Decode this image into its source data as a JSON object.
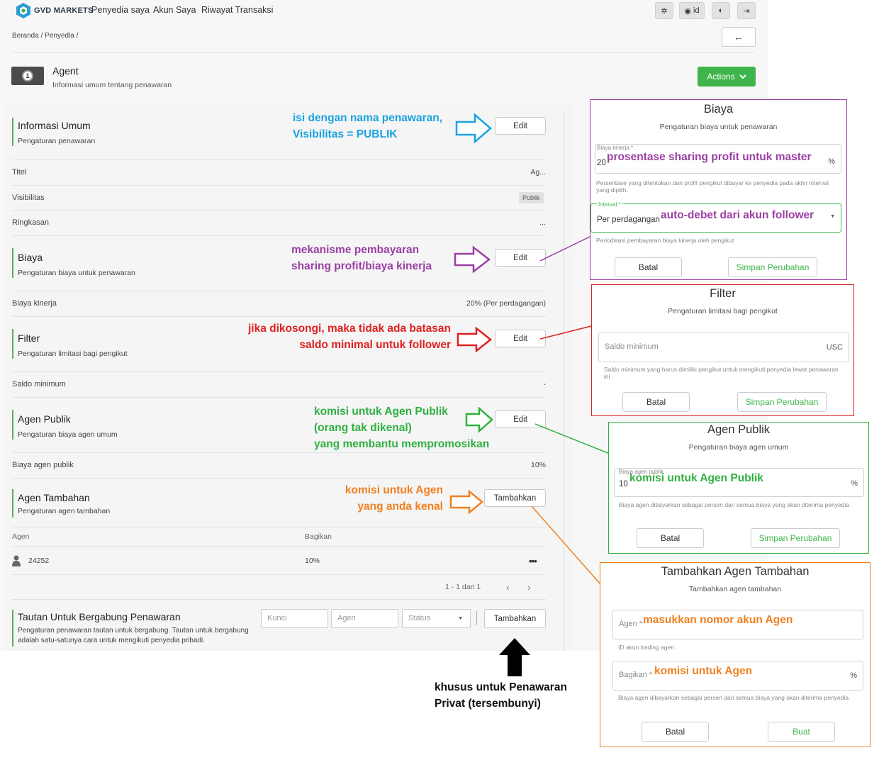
{
  "app": {
    "brand": "GVD MARKETS",
    "nav": [
      "Penyedia saya",
      "Akun Saya",
      "Riwayat Transaksi"
    ],
    "lang_label": "id"
  },
  "breadcrumb": {
    "home": "Beranda",
    "providers": "Penyedia",
    "sep": "/"
  },
  "offer": {
    "title": "Agent",
    "subtitle": "Informasi umum tentang penawaran",
    "actions_label": "Actions",
    "icon_number": "1"
  },
  "sections": {
    "general": {
      "title": "Informasi Umum",
      "subtitle": "Pengaturan penawaran",
      "edit": "Edit"
    },
    "fees": {
      "title": "Biaya",
      "subtitle": "Pengaturan biaya untuk penawaran",
      "edit": "Edit"
    },
    "filter": {
      "title": "Filter",
      "subtitle": "Pengaturan limitasi bagi pengikut",
      "edit": "Edit"
    },
    "public_agent": {
      "title": "Agen Publik",
      "subtitle": "Pengaturan biaya agen umum",
      "edit": "Edit"
    },
    "extra_agent": {
      "title": "Agen Tambahan",
      "subtitle": "Pengaturan agen tambahan",
      "add": "Tambahkan"
    },
    "join_links": {
      "title": "Tautan Untuk Bergabung Penawaran",
      "subtitle": "Pengaturan penawaran tautan untuk bergabung. Tautan untuk bergabung adalah satu-satunya cara untuk mengikuti penyedia pribadi.",
      "add": "Tambahkan"
    }
  },
  "rows": {
    "title_label": "Titel",
    "title_value": "Ag...",
    "visibility_label": "Visibilitas",
    "visibility_value": "Publik",
    "summary_label": "Ringkasan",
    "summary_value": "...",
    "performance_fee_label": "Biaya kinerja",
    "performance_fee_value": "20% (Per perdagangan)",
    "min_balance_label": "Saldo minimum",
    "min_balance_value": "-",
    "public_agent_fee_label": "Biaya agen publik",
    "public_agent_fee_value": "10%"
  },
  "agent_table": {
    "columns": [
      "Agen",
      "Bagikan"
    ],
    "rows": [
      {
        "agent": "24252",
        "share": "10%"
      }
    ],
    "pagination": "1 - 1 dari 1"
  },
  "join_filters": {
    "key_placeholder": "Kunci",
    "agent_placeholder": "Agen",
    "status_placeholder": "Status"
  },
  "annotations": {
    "general": [
      "isi dengan nama penawaran,",
      "Visibilitas = PUBLIK"
    ],
    "fees": [
      "mekanisme pembayaran",
      "sharing profit/biaya kinerja"
    ],
    "filter": [
      "jika dikosongi, maka tidak ada batasan",
      "saldo minimal untuk follower"
    ],
    "public_agent": [
      "komisi untuk Agen Publik",
      " (orang tak dikenal)",
      "yang membantu mempromosikan"
    ],
    "extra_agent": [
      "komisi untuk Agen",
      "yang anda kenal"
    ],
    "join_links": [
      "khusus untuk Penawaran",
      "Privat (tersembunyi)"
    ]
  },
  "dialogs": {
    "fees": {
      "title": "Biaya",
      "subtitle": "Pengaturan biaya untuk penawaran",
      "fee_label": "Biaya kinerja *",
      "fee_value": "20",
      "fee_unit": "%",
      "fee_note": "prosentase sharing profit untuk master",
      "fee_hint": "Persentase yang ditentukan dari profit pengikut dibayar ke penyedia pada akhir interval yang dipilih.",
      "interval_label": "Interval *",
      "interval_value": "Per perdagangan",
      "interval_note": "auto-debet dari akun follower",
      "interval_hint": "Periodisasi pembayaran biaya kinerja oleh pengikut",
      "cancel": "Batal",
      "save": "Simpan Perubahan"
    },
    "filter": {
      "title": "Filter",
      "subtitle": "Pengaturan limitasi bagi pengikut",
      "min_placeholder": "Saldo minimum",
      "unit": "USC",
      "hint": "Saldo minimum yang harus dimiliki pengikut untuk mengikuti penyedia lewat penawaran ini",
      "cancel": "Batal",
      "save": "Simpan Perubahan"
    },
    "public_agent": {
      "title": "Agen Publik",
      "subtitle": "Pengaturan biaya agen umum",
      "fee_label": "Biaya agen publik",
      "fee_value": "10",
      "fee_note": "komisi untuk Agen Publik",
      "unit": "%",
      "hint": "Biaya agen dibayarkan sebagai persen dari semua biaya yang akan diterima penyedia",
      "cancel": "Batal",
      "save": "Simpan Perubahan"
    },
    "add_agent": {
      "title": "Tambahkan Agen Tambahan",
      "subtitle": "Tambahkan agen tambahan",
      "agent_label": "Agen *",
      "agent_note": "masukkan nomor akun Agen",
      "agent_hint": "ID akun trading agen",
      "share_label": "Bagikan *",
      "share_note": "komisi untuk Agen",
      "unit": "%",
      "share_hint": "Biaya agen dibayarkan sebagai persen dari semua biaya yang akan diterima penyedia",
      "cancel": "Batal",
      "create": "Buat"
    }
  },
  "colors": {
    "accent_green": "#3db54a",
    "anno_blue": "#1aa3e0",
    "anno_purple": "#9b3fa3",
    "anno_red": "#e02020",
    "anno_green": "#30b040",
    "anno_orange": "#f08020"
  }
}
